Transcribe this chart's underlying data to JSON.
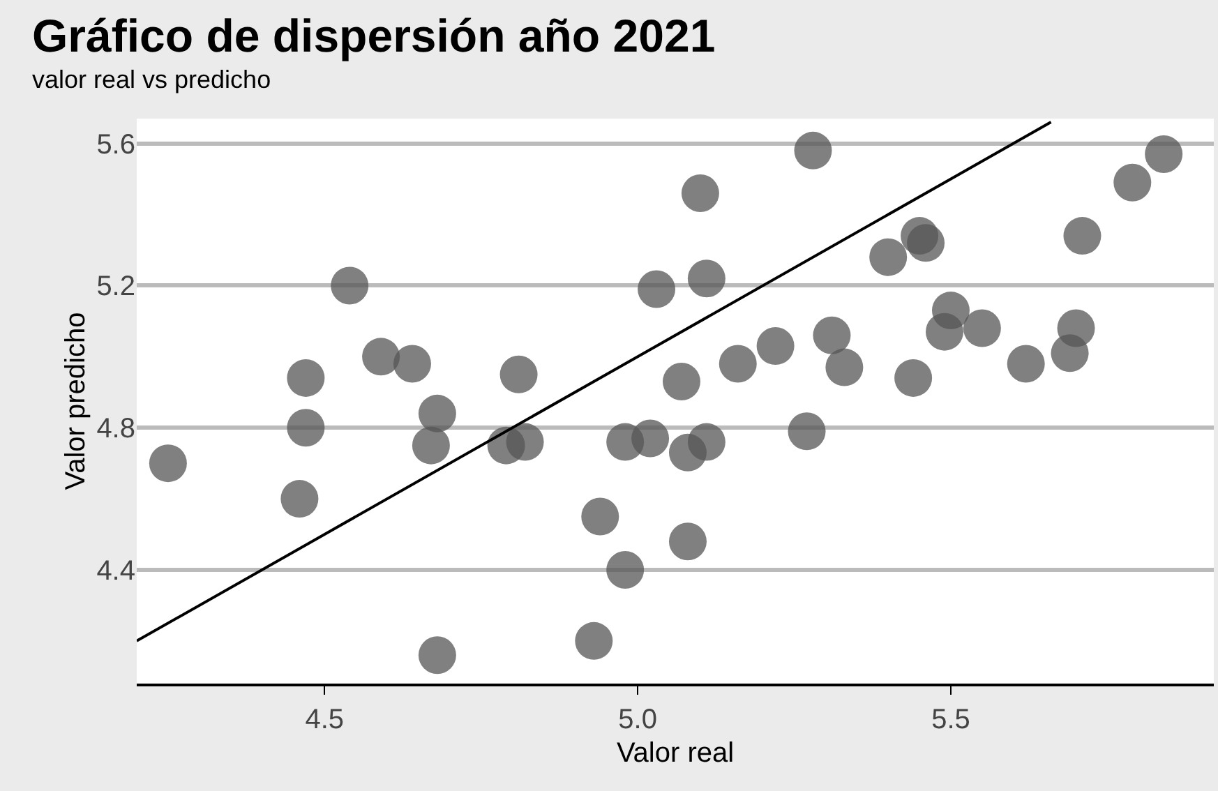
{
  "chart_data": {
    "type": "scatter",
    "title": "Gráfico de dispersión año 2021",
    "subtitle": "valor real vs predicho",
    "xlabel": "Valor real",
    "ylabel": "Valor predicho",
    "xlim": [
      4.2,
      5.92
    ],
    "ylim": [
      4.08,
      5.67
    ],
    "xticks": [
      {
        "value": 4.5,
        "label": "4.5"
      },
      {
        "value": 5,
        "label": "5.0"
      },
      {
        "value": 5.5,
        "label": "5.5"
      }
    ],
    "yticks": [
      4.4,
      4.8,
      5.2,
      5.6
    ],
    "grid": "y",
    "series": [
      {
        "marker": "circle",
        "color": "#555555",
        "x": [
          4.25,
          4.46,
          4.47,
          4.47,
          4.54,
          4.59,
          4.64,
          4.68,
          4.67,
          4.68,
          4.79,
          4.81,
          4.82,
          4.94,
          4.93,
          4.98,
          4.98,
          5.02,
          5.03,
          5.07,
          5.08,
          5.08,
          5.1,
          5.11,
          5.11,
          5.16,
          5.22,
          5.27,
          5.28,
          5.31,
          5.33,
          5.4,
          5.44,
          5.45,
          5.46,
          5.49,
          5.5,
          5.55,
          5.62,
          5.69,
          5.7,
          5.71,
          5.79,
          5.84
        ],
        "values": [
          4.7,
          4.6,
          4.8,
          4.94,
          5.2,
          5.0,
          4.98,
          4.84,
          4.75,
          4.16,
          4.75,
          4.95,
          4.76,
          4.55,
          4.2,
          4.4,
          4.76,
          4.77,
          5.19,
          4.93,
          4.48,
          4.73,
          5.46,
          5.22,
          4.76,
          4.98,
          5.03,
          4.79,
          5.58,
          5.06,
          4.97,
          5.28,
          4.94,
          5.34,
          5.32,
          5.07,
          5.13,
          5.08,
          4.98,
          5.01,
          5.08,
          5.34,
          5.49,
          5.57
        ]
      },
      {
        "type": "line",
        "color": "#000000",
        "x": [
          4.2,
          5.66
        ],
        "values": [
          4.2,
          5.66
        ],
        "line_style": "solid"
      }
    ]
  }
}
